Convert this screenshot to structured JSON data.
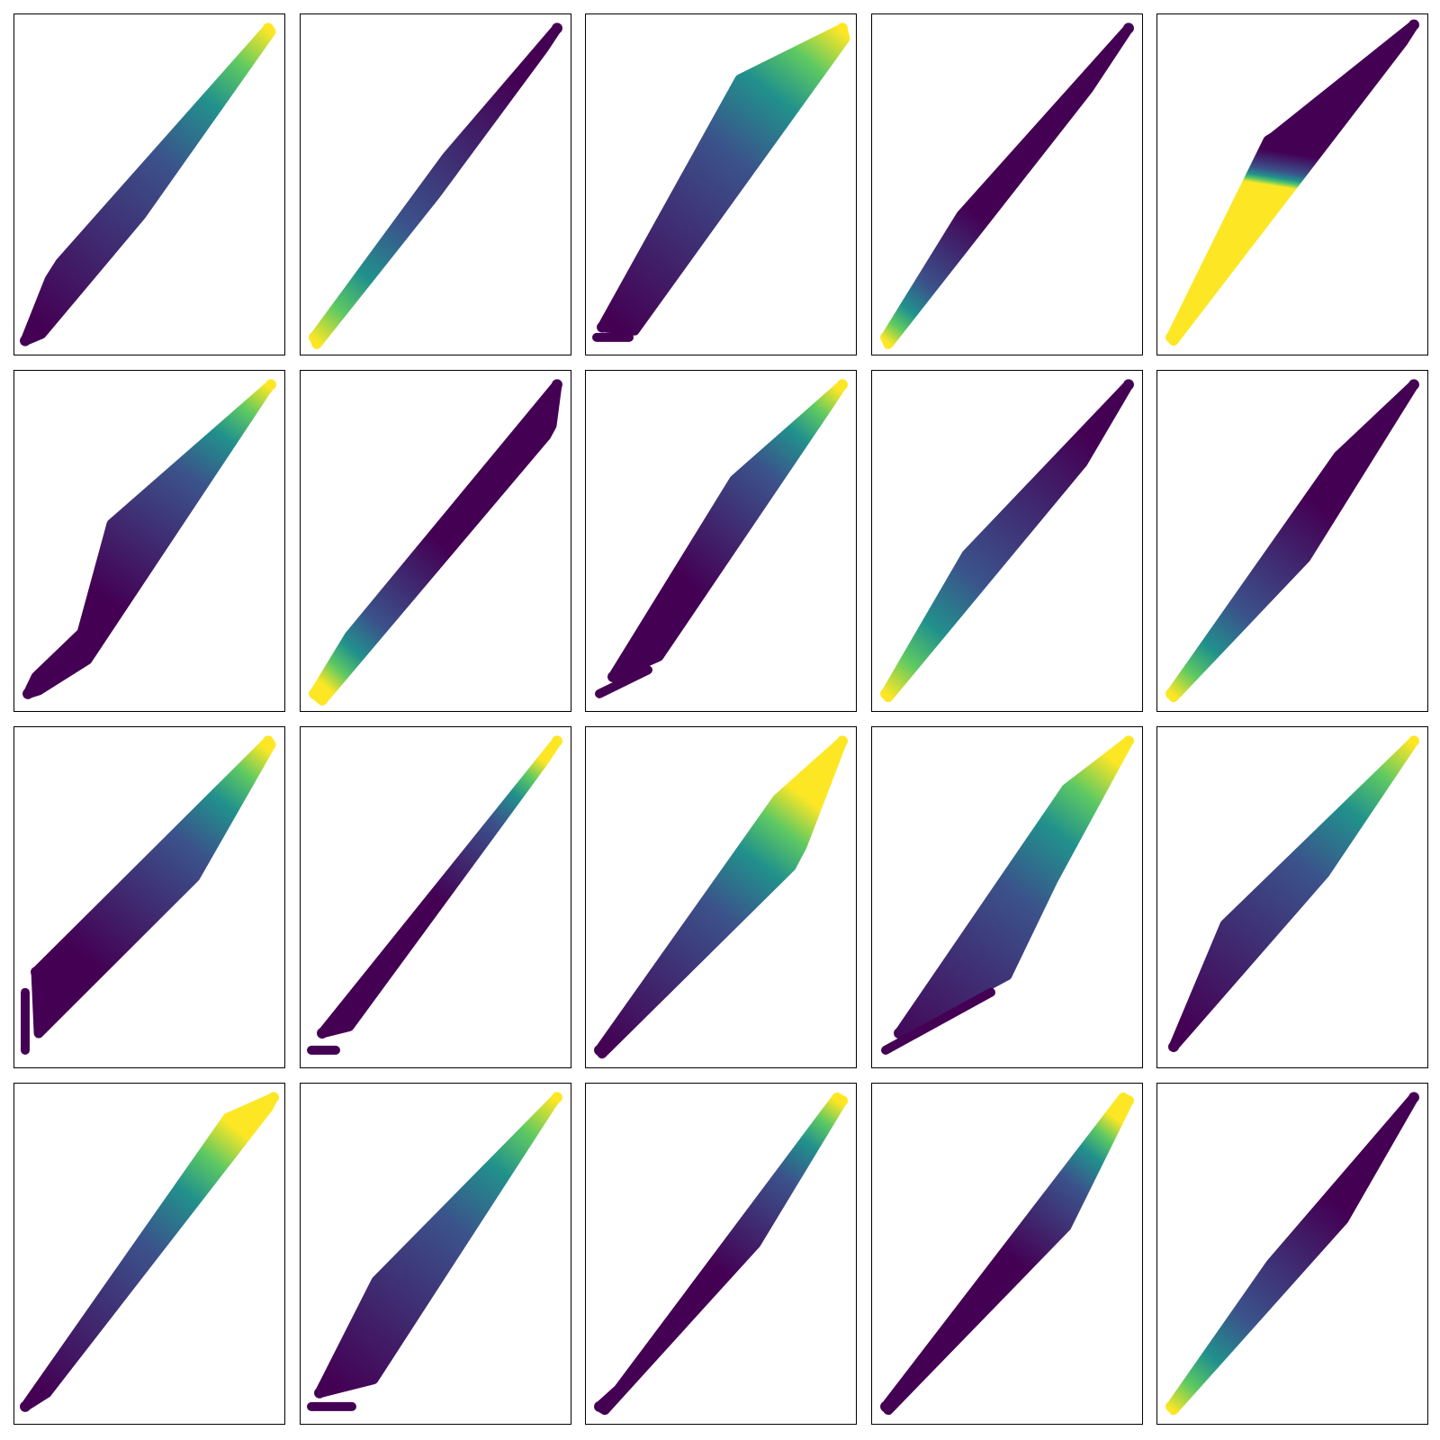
{
  "figure": {
    "nrows": 4,
    "ncols": 5,
    "colormap": "viridis",
    "colormap_stops": [
      "#440154",
      "#3b528b",
      "#21918c",
      "#5ec962",
      "#fde725"
    ],
    "axes_ticks": false
  },
  "chart_data": [
    {
      "type": "scatter",
      "panel": 1,
      "xlim": [
        0,
        1
      ],
      "ylim": [
        0,
        1
      ],
      "polygon": [
        [
          0.04,
          0.04
        ],
        [
          0.13,
          0.22
        ],
        [
          0.17,
          0.27
        ],
        [
          0.94,
          0.96
        ],
        [
          0.95,
          0.95
        ],
        [
          0.47,
          0.41
        ],
        [
          0.1,
          0.06
        ]
      ],
      "color_low": [
        0.08,
        0.1
      ],
      "color_high": [
        0.95,
        0.95
      ]
    },
    {
      "type": "scatter",
      "panel": 2,
      "xlim": [
        0,
        1
      ],
      "ylim": [
        0,
        1
      ],
      "polygon": [
        [
          0.05,
          0.05
        ],
        [
          0.54,
          0.58
        ],
        [
          0.95,
          0.96
        ],
        [
          0.9,
          0.9
        ],
        [
          0.5,
          0.47
        ],
        [
          0.06,
          0.03
        ]
      ],
      "color_low": [
        0.8,
        0.8
      ],
      "color_high": [
        0.05,
        0.04
      ]
    },
    {
      "type": "scatter",
      "panel": 3,
      "xlim": [
        0,
        1
      ],
      "ylim": [
        0,
        1
      ],
      "polygon": [
        [
          0.06,
          0.08
        ],
        [
          0.57,
          0.81
        ],
        [
          0.95,
          0.96
        ],
        [
          0.96,
          0.93
        ],
        [
          0.18,
          0.07
        ]
      ],
      "color_low": [
        0.1,
        0.1
      ],
      "color_high": [
        0.95,
        0.95
      ],
      "segments": [
        {
          "from": [
            0.04,
            0.05
          ],
          "to": [
            0.16,
            0.05
          ]
        }
      ]
    },
    {
      "type": "scatter",
      "panel": 4,
      "xlim": [
        0,
        1
      ],
      "ylim": [
        0,
        1
      ],
      "polygon": [
        [
          0.05,
          0.05
        ],
        [
          0.33,
          0.41
        ],
        [
          0.95,
          0.96
        ],
        [
          0.8,
          0.78
        ],
        [
          0.06,
          0.03
        ]
      ],
      "color_low": [
        0.4,
        0.4
      ],
      "color_high": [
        0.05,
        0.04
      ]
    },
    {
      "type": "scatter",
      "panel": 5,
      "xlim": [
        0,
        1
      ],
      "ylim": [
        0,
        1
      ],
      "polygon": [
        [
          0.05,
          0.05
        ],
        [
          0.41,
          0.63
        ],
        [
          0.43,
          0.64
        ],
        [
          0.95,
          0.97
        ],
        [
          0.91,
          0.92
        ],
        [
          0.06,
          0.04
        ]
      ],
      "color_low": [
        0.42,
        0.6
      ],
      "color_high": [
        0.4,
        0.5
      ]
    },
    {
      "type": "scatter",
      "panel": 6,
      "xlim": [
        0,
        1
      ],
      "ylim": [
        0,
        1
      ],
      "polygon": [
        [
          0.05,
          0.05
        ],
        [
          0.08,
          0.1
        ],
        [
          0.25,
          0.23
        ],
        [
          0.36,
          0.55
        ],
        [
          0.95,
          0.96
        ],
        [
          0.93,
          0.94
        ],
        [
          0.27,
          0.15
        ],
        [
          0.09,
          0.06
        ]
      ],
      "color_low": [
        0.4,
        0.3
      ],
      "color_high": [
        0.95,
        0.95
      ]
    },
    {
      "type": "scatter",
      "panel": 7,
      "xlim": [
        0,
        1
      ],
      "ylim": [
        0,
        1
      ],
      "polygon": [
        [
          0.05,
          0.05
        ],
        [
          0.18,
          0.22
        ],
        [
          0.95,
          0.96
        ],
        [
          0.93,
          0.84
        ],
        [
          0.91,
          0.81
        ],
        [
          0.08,
          0.03
        ]
      ],
      "color_low": [
        0.5,
        0.5
      ],
      "color_high": [
        0.05,
        0.1
      ]
    },
    {
      "type": "scatter",
      "panel": 8,
      "xlim": [
        0,
        1
      ],
      "ylim": [
        0,
        1
      ],
      "polygon": [
        [
          0.1,
          0.1
        ],
        [
          0.55,
          0.68
        ],
        [
          0.95,
          0.96
        ],
        [
          0.9,
          0.9
        ],
        [
          0.27,
          0.16
        ]
      ],
      "color_low": [
        0.35,
        0.4
      ],
      "color_high": [
        0.93,
        0.95
      ],
      "segments": [
        {
          "from": [
            0.05,
            0.05
          ],
          "to": [
            0.23,
            0.12
          ]
        }
      ]
    },
    {
      "type": "scatter",
      "panel": 9,
      "xlim": [
        0,
        1
      ],
      "ylim": [
        0,
        1
      ],
      "polygon": [
        [
          0.05,
          0.05
        ],
        [
          0.35,
          0.46
        ],
        [
          0.95,
          0.96
        ],
        [
          0.78,
          0.73
        ],
        [
          0.06,
          0.04
        ]
      ],
      "color_low": [
        0.8,
        0.8
      ],
      "color_high": [
        0.05,
        0.05
      ]
    },
    {
      "type": "scatter",
      "panel": 10,
      "xlim": [
        0,
        1
      ],
      "ylim": [
        0,
        1
      ],
      "polygon": [
        [
          0.05,
          0.05
        ],
        [
          0.67,
          0.75
        ],
        [
          0.95,
          0.96
        ],
        [
          0.55,
          0.45
        ],
        [
          0.06,
          0.04
        ]
      ],
      "color_low": [
        0.6,
        0.6
      ],
      "color_high": [
        0.05,
        0.05
      ]
    },
    {
      "type": "scatter",
      "panel": 11,
      "xlim": [
        0,
        1
      ],
      "ylim": [
        0,
        1
      ],
      "polygon": [
        [
          0.08,
          0.28
        ],
        [
          0.94,
          0.96
        ],
        [
          0.95,
          0.95
        ],
        [
          0.67,
          0.56
        ],
        [
          0.09,
          0.1
        ]
      ],
      "color_low": [
        0.3,
        0.3
      ],
      "color_high": [
        0.93,
        0.94
      ],
      "segments": [
        {
          "from": [
            0.04,
            0.05
          ],
          "to": [
            0.04,
            0.22
          ]
        }
      ]
    },
    {
      "type": "scatter",
      "panel": 12,
      "xlim": [
        0,
        1
      ],
      "ylim": [
        0,
        1
      ],
      "polygon": [
        [
          0.08,
          0.1
        ],
        [
          0.95,
          0.96
        ],
        [
          0.9,
          0.9
        ],
        [
          0.18,
          0.12
        ]
      ],
      "color_low": [
        0.5,
        0.5
      ],
      "color_high": [
        0.9,
        0.9
      ],
      "segments": [
        {
          "from": [
            0.04,
            0.05
          ],
          "to": [
            0.13,
            0.05
          ]
        }
      ]
    },
    {
      "type": "scatter",
      "panel": 13,
      "xlim": [
        0,
        1
      ],
      "ylim": [
        0,
        1
      ],
      "polygon": [
        [
          0.05,
          0.05
        ],
        [
          0.71,
          0.79
        ],
        [
          0.95,
          0.96
        ],
        [
          0.8,
          0.65
        ],
        [
          0.76,
          0.59
        ],
        [
          0.06,
          0.04
        ]
      ],
      "color_low": [
        0.08,
        0.06
      ],
      "color_high": [
        0.8,
        0.8
      ]
    },
    {
      "type": "scatter",
      "panel": 14,
      "xlim": [
        0,
        1
      ],
      "ylim": [
        0,
        1
      ],
      "polygon": [
        [
          0.1,
          0.1
        ],
        [
          0.72,
          0.82
        ],
        [
          0.95,
          0.96
        ],
        [
          0.67,
          0.55
        ],
        [
          0.5,
          0.27
        ]
      ],
      "color_low": [
        0.06,
        0.05
      ],
      "color_high": [
        0.9,
        0.9
      ],
      "segments": [
        {
          "from": [
            0.05,
            0.05
          ],
          "to": [
            0.44,
            0.22
          ]
        }
      ]
    },
    {
      "type": "scatter",
      "panel": 15,
      "xlim": [
        0,
        1
      ],
      "ylim": [
        0,
        1
      ],
      "polygon": [
        [
          0.06,
          0.06
        ],
        [
          0.25,
          0.42
        ],
        [
          0.95,
          0.96
        ],
        [
          0.62,
          0.57
        ]
      ],
      "color_low": [
        0.12,
        0.1
      ],
      "color_high": [
        0.95,
        0.95
      ]
    },
    {
      "type": "scatter",
      "panel": 16,
      "xlim": [
        0,
        1
      ],
      "ylim": [
        0,
        1
      ],
      "polygon": [
        [
          0.04,
          0.05
        ],
        [
          0.79,
          0.9
        ],
        [
          0.96,
          0.96
        ],
        [
          0.94,
          0.93
        ],
        [
          0.12,
          0.09
        ]
      ],
      "color_low": [
        0.1,
        0.1
      ],
      "color_high": [
        0.85,
        0.85
      ]
    },
    {
      "type": "scatter",
      "panel": 17,
      "xlim": [
        0,
        1
      ],
      "ylim": [
        0,
        1
      ],
      "polygon": [
        [
          0.07,
          0.09
        ],
        [
          0.28,
          0.42
        ],
        [
          0.95,
          0.96
        ],
        [
          0.93,
          0.94
        ],
        [
          0.27,
          0.13
        ]
      ],
      "color_low": [
        0.12,
        0.12
      ],
      "color_high": [
        0.95,
        0.95
      ],
      "segments": [
        {
          "from": [
            0.04,
            0.05
          ],
          "to": [
            0.19,
            0.05
          ]
        }
      ]
    },
    {
      "type": "scatter",
      "panel": 18,
      "xlim": [
        0,
        1
      ],
      "ylim": [
        0,
        1
      ],
      "polygon": [
        [
          0.05,
          0.05
        ],
        [
          0.12,
          0.1
        ],
        [
          0.93,
          0.96
        ],
        [
          0.95,
          0.95
        ],
        [
          0.63,
          0.53
        ],
        [
          0.07,
          0.04
        ]
      ],
      "color_low": [
        0.5,
        0.45
      ],
      "color_high": [
        0.93,
        0.95
      ]
    },
    {
      "type": "scatter",
      "panel": 19,
      "xlim": [
        0,
        1
      ],
      "ylim": [
        0,
        1
      ],
      "polygon": [
        [
          0.05,
          0.05
        ],
        [
          0.93,
          0.96
        ],
        [
          0.95,
          0.95
        ],
        [
          0.72,
          0.58
        ],
        [
          0.06,
          0.04
        ]
      ],
      "color_low": [
        0.5,
        0.5
      ],
      "color_high": [
        0.9,
        0.9
      ]
    },
    {
      "type": "scatter",
      "panel": 20,
      "xlim": [
        0,
        1
      ],
      "ylim": [
        0,
        1
      ],
      "polygon": [
        [
          0.05,
          0.05
        ],
        [
          0.42,
          0.47
        ],
        [
          0.95,
          0.96
        ],
        [
          0.69,
          0.6
        ],
        [
          0.06,
          0.04
        ]
      ],
      "color_low": [
        0.65,
        0.65
      ],
      "color_high": [
        0.05,
        0.04
      ]
    }
  ]
}
